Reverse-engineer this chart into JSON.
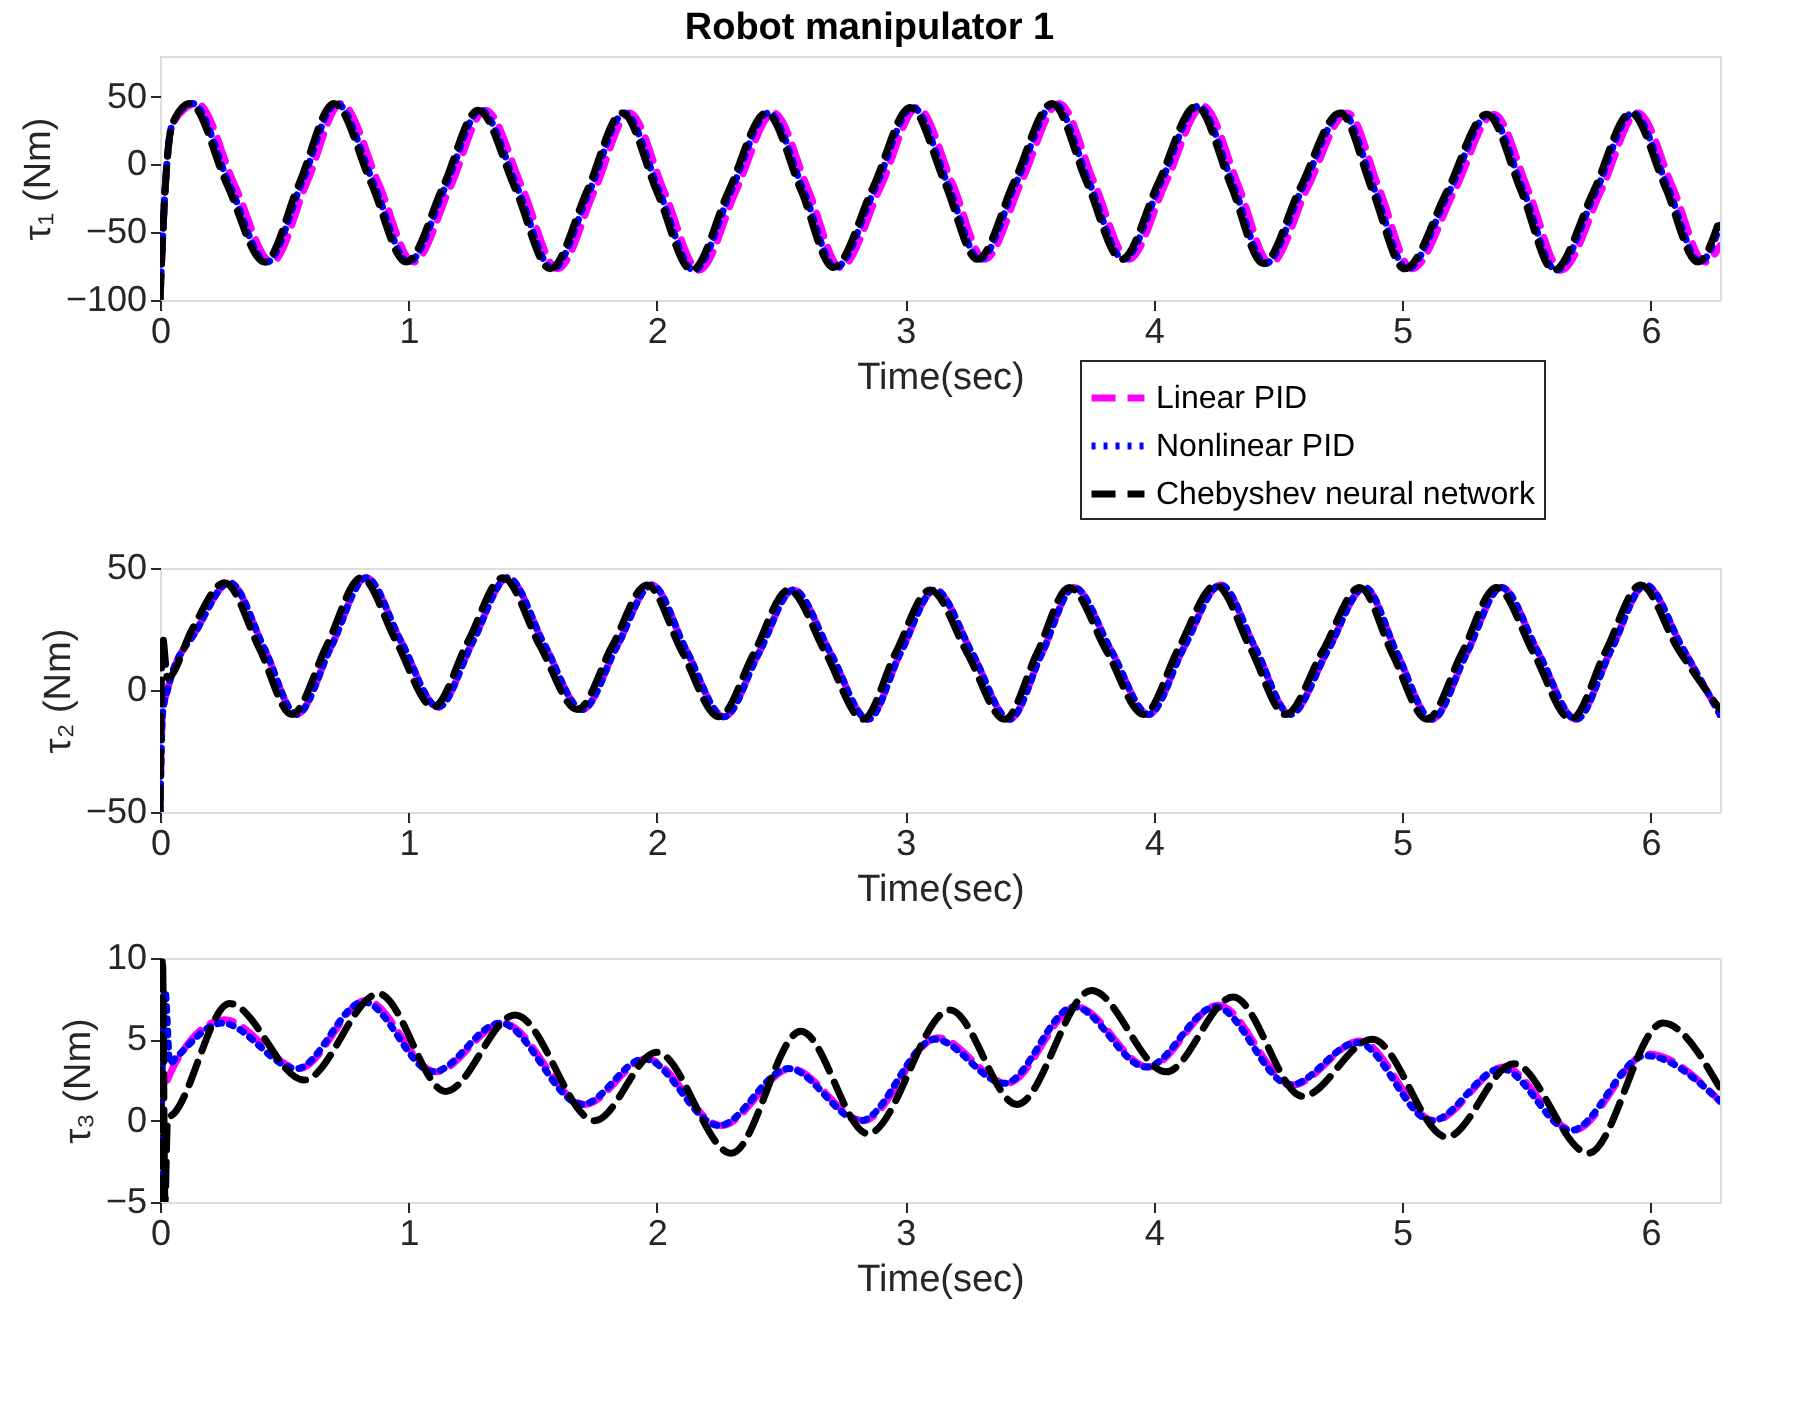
{
  "chart_data": [
    {
      "type": "line",
      "title": "Robot manipulator 1",
      "xlabel": "Time(sec)",
      "ylabel": "τ₁ (Nm)",
      "xlim": [
        0,
        6.28
      ],
      "xticks": [
        0,
        1,
        2,
        3,
        4,
        5,
        6
      ],
      "ylim": [
        -100,
        80
      ],
      "yticks": [
        -100,
        -50,
        0,
        50
      ],
      "grid": false,
      "legend": "bottom right",
      "series": [
        {
          "name": "Linear PID",
          "color": "#ff00ff",
          "line_style": "dashed",
          "x": [
            0,
            0.02,
            0.05,
            0.15,
            0.3,
            0.45,
            0.59,
            0.73,
            0.88,
            1.02,
            1.17,
            1.31,
            1.46,
            1.6,
            1.75,
            1.89,
            2.03,
            2.17,
            2.32,
            2.47,
            2.61,
            2.74,
            2.9,
            3.05,
            3.19,
            3.32,
            3.47,
            3.62,
            3.76,
            3.9,
            4.05,
            4.2,
            4.34,
            4.47,
            4.62,
            4.78,
            4.91,
            5.04,
            5.21,
            5.37,
            5.51,
            5.64,
            5.8,
            5.95,
            6.09,
            6.22,
            6.28
          ],
          "values": [
            -100,
            -20,
            30,
            45,
            -15,
            -72,
            -14,
            45,
            -14,
            -72,
            -16,
            40,
            -18,
            -77,
            -19,
            38,
            -20,
            -78,
            -19,
            38,
            -19,
            -76,
            -17,
            42,
            -14,
            -70,
            -12,
            45,
            -13,
            -70,
            -13,
            43,
            -15,
            -73,
            -17,
            38,
            -19,
            -77,
            -20,
            37,
            -20,
            -78,
            -20,
            38,
            -17,
            -72,
            -60
          ]
        },
        {
          "name": "Nonlinear PID",
          "color": "#0000ff",
          "line_style": "dotted",
          "x": [
            0,
            0.02,
            0.05,
            0.13,
            0.28,
            0.43,
            0.57,
            0.71,
            0.86,
            1.0,
            1.15,
            1.29,
            1.44,
            1.58,
            1.73,
            1.87,
            2.01,
            2.15,
            2.3,
            2.45,
            2.59,
            2.72,
            2.88,
            3.03,
            3.17,
            3.3,
            3.45,
            3.6,
            3.74,
            3.88,
            4.03,
            4.18,
            4.32,
            4.45,
            4.6,
            4.76,
            4.89,
            5.02,
            5.19,
            5.35,
            5.49,
            5.62,
            5.78,
            5.93,
            6.07,
            6.2,
            6.28
          ],
          "values": [
            -100,
            -20,
            30,
            45,
            -15,
            -72,
            -14,
            45,
            -14,
            -72,
            -16,
            40,
            -18,
            -77,
            -19,
            38,
            -20,
            -78,
            -19,
            38,
            -19,
            -76,
            -17,
            42,
            -14,
            -70,
            -12,
            45,
            -13,
            -70,
            -13,
            43,
            -15,
            -73,
            -17,
            38,
            -19,
            -77,
            -20,
            37,
            -20,
            -78,
            -20,
            38,
            -17,
            -72,
            -45
          ]
        },
        {
          "name": "Chebyshev neural network",
          "color": "#000000",
          "line_style": "dashed",
          "x": [
            0,
            0.02,
            0.05,
            0.12,
            0.27,
            0.42,
            0.56,
            0.7,
            0.85,
            0.99,
            1.14,
            1.28,
            1.43,
            1.57,
            1.72,
            1.86,
            2.0,
            2.14,
            2.29,
            2.44,
            2.58,
            2.71,
            2.87,
            3.02,
            3.16,
            3.29,
            3.44,
            3.59,
            3.73,
            3.87,
            4.02,
            4.17,
            4.31,
            4.44,
            4.59,
            4.75,
            4.88,
            5.01,
            5.18,
            5.34,
            5.48,
            5.61,
            5.77,
            5.92,
            6.06,
            6.19,
            6.28
          ],
          "values": [
            -100,
            -20,
            30,
            45,
            -15,
            -72,
            -14,
            45,
            -14,
            -72,
            -16,
            40,
            -18,
            -77,
            -19,
            38,
            -20,
            -78,
            -19,
            38,
            -19,
            -76,
            -17,
            42,
            -14,
            -70,
            -12,
            45,
            -13,
            -70,
            -13,
            43,
            -15,
            -73,
            -17,
            38,
            -19,
            -77,
            -20,
            37,
            -20,
            -78,
            -20,
            38,
            -17,
            -72,
            -40
          ]
        }
      ]
    },
    {
      "type": "line",
      "xlabel": "Time(sec)",
      "ylabel": "τ₂ (Nm)",
      "xlim": [
        0,
        6.28
      ],
      "xticks": [
        0,
        1,
        2,
        3,
        4,
        5,
        6
      ],
      "ylim": [
        -50,
        50
      ],
      "yticks": [
        -50,
        0,
        50
      ],
      "grid": false,
      "series": [
        {
          "color": "#ff00ff",
          "line_style": "dashed",
          "x": [
            0,
            0.01,
            0.03,
            0.15,
            0.28,
            0.42,
            0.55,
            0.69,
            0.83,
            0.97,
            1.12,
            1.26,
            1.4,
            1.55,
            1.7,
            1.84,
            1.98,
            2.12,
            2.27,
            2.41,
            2.55,
            2.7,
            2.85,
            2.98,
            3.12,
            3.27,
            3.42,
            3.55,
            3.68,
            3.83,
            3.98,
            4.12,
            4.27,
            4.41,
            4.55,
            4.7,
            4.85,
            4.98,
            5.12,
            5.26,
            5.4,
            5.55,
            5.7,
            5.84,
            5.98,
            6.13,
            6.28
          ],
          "values": [
            -50,
            -10,
            0,
            25,
            44,
            17,
            -10,
            18,
            46,
            20,
            -7,
            20,
            46,
            18,
            -8,
            18,
            43,
            16,
            -11,
            15,
            41,
            15,
            -12,
            15,
            41,
            15,
            -12,
            15,
            42,
            16,
            -10,
            17,
            43,
            17,
            -10,
            16,
            42,
            15,
            -12,
            15,
            42,
            15,
            -12,
            16,
            43,
            17,
            -10
          ]
        },
        {
          "color": "#0000ff",
          "line_style": "dotted",
          "x": [
            0,
            0.01,
            0.03,
            0.15,
            0.28,
            0.42,
            0.55,
            0.69,
            0.83,
            0.97,
            1.12,
            1.26,
            1.4,
            1.55,
            1.7,
            1.84,
            1.98,
            2.12,
            2.27,
            2.41,
            2.55,
            2.7,
            2.85,
            2.98,
            3.12,
            3.27,
            3.42,
            3.55,
            3.68,
            3.83,
            3.98,
            4.12,
            4.27,
            4.41,
            4.55,
            4.7,
            4.85,
            4.98,
            5.12,
            5.26,
            5.4,
            5.55,
            5.7,
            5.84,
            5.98,
            6.13,
            6.28
          ],
          "values": [
            -50,
            -10,
            0,
            25,
            44,
            17,
            -10,
            18,
            46,
            20,
            -7,
            20,
            46,
            18,
            -8,
            18,
            43,
            16,
            -11,
            15,
            41,
            15,
            -12,
            15,
            41,
            15,
            -12,
            15,
            42,
            16,
            -10,
            17,
            43,
            17,
            -10,
            16,
            42,
            15,
            -12,
            15,
            42,
            15,
            -12,
            16,
            43,
            17,
            -10
          ]
        },
        {
          "color": "#000000",
          "line_style": "dashed",
          "x": [
            0,
            0.01,
            0.03,
            0.13,
            0.26,
            0.4,
            0.53,
            0.67,
            0.81,
            0.95,
            1.1,
            1.24,
            1.38,
            1.53,
            1.68,
            1.82,
            1.96,
            2.1,
            2.25,
            2.39,
            2.53,
            2.68,
            2.83,
            2.96,
            3.1,
            3.25,
            3.4,
            3.53,
            3.66,
            3.81,
            3.96,
            4.1,
            4.25,
            4.39,
            4.53,
            4.68,
            4.83,
            4.96,
            5.1,
            5.24,
            5.38,
            5.53,
            5.68,
            5.82,
            5.96,
            6.11,
            6.28
          ],
          "values": [
            -50,
            22,
            5,
            25,
            44,
            17,
            -10,
            18,
            46,
            20,
            -7,
            20,
            46,
            18,
            -8,
            18,
            43,
            16,
            -11,
            15,
            41,
            15,
            -12,
            15,
            41,
            15,
            -12,
            15,
            42,
            16,
            -10,
            17,
            43,
            17,
            -10,
            16,
            42,
            15,
            -12,
            15,
            42,
            15,
            -12,
            16,
            43,
            17,
            -8
          ]
        }
      ]
    },
    {
      "type": "line",
      "xlabel": "Time(sec)",
      "ylabel": "τ₃ (Nm)",
      "xlim": [
        0,
        6.28
      ],
      "xticks": [
        0,
        1,
        2,
        3,
        4,
        5,
        6
      ],
      "ylim": [
        -5,
        10
      ],
      "yticks": [
        -5,
        0,
        5,
        10
      ],
      "grid": false,
      "series": [
        {
          "color": "#ff00ff",
          "line_style": "dashed",
          "x": [
            0.03,
            0.06,
            0.26,
            0.56,
            0.83,
            1.11,
            1.38,
            1.71,
            1.96,
            2.26,
            2.54,
            2.83,
            3.13,
            3.41,
            3.69,
            3.98,
            4.26,
            4.56,
            4.83,
            5.13,
            5.41,
            5.69,
            5.99,
            6.28
          ],
          "values": [
            2.5,
            3.5,
            6.2,
            3.2,
            7.4,
            3,
            6,
            1,
            3.8,
            -0.3,
            3.2,
            0,
            5.1,
            2.3,
            7,
            3.3,
            7.1,
            2.2,
            4.9,
            0,
            3.3,
            -0.6,
            4.1,
            1.2
          ]
        },
        {
          "color": "#0000ff",
          "line_style": "dotted",
          "x": [
            0,
            0.02,
            0.04,
            0.06,
            0.25,
            0.55,
            0.82,
            1.1,
            1.37,
            1.7,
            1.95,
            2.25,
            2.53,
            2.82,
            3.12,
            3.4,
            3.68,
            3.97,
            4.25,
            4.55,
            4.82,
            5.12,
            5.4,
            5.68,
            5.98,
            6.28
          ],
          "values": [
            -5,
            8,
            3.5,
            3.8,
            6,
            3.2,
            7.3,
            3,
            6,
            1,
            3.8,
            -0.3,
            3.2,
            0,
            5,
            2.3,
            7,
            3.3,
            7,
            2.2,
            4.8,
            0,
            3.2,
            -0.6,
            4,
            1.2
          ]
        },
        {
          "color": "#000000",
          "line_style": "dashed",
          "x": [
            0,
            0.01,
            0.02,
            0.03,
            0.06,
            0.28,
            0.58,
            0.88,
            1.15,
            1.43,
            1.75,
            2.0,
            2.3,
            2.58,
            2.85,
            3.18,
            3.45,
            3.75,
            4.05,
            4.32,
            4.6,
            4.88,
            5.18,
            5.45,
            5.75,
            6.05,
            6.28
          ],
          "values": [
            -5,
            10,
            -5,
            0,
            0.5,
            7.2,
            2.5,
            7.8,
            1.8,
            6.5,
            0,
            4.2,
            -2,
            5.5,
            -0.8,
            6.8,
            1,
            8,
            3,
            7.6,
            1.5,
            5,
            -1,
            3.5,
            -2,
            6,
            2
          ]
        }
      ]
    }
  ]
}
